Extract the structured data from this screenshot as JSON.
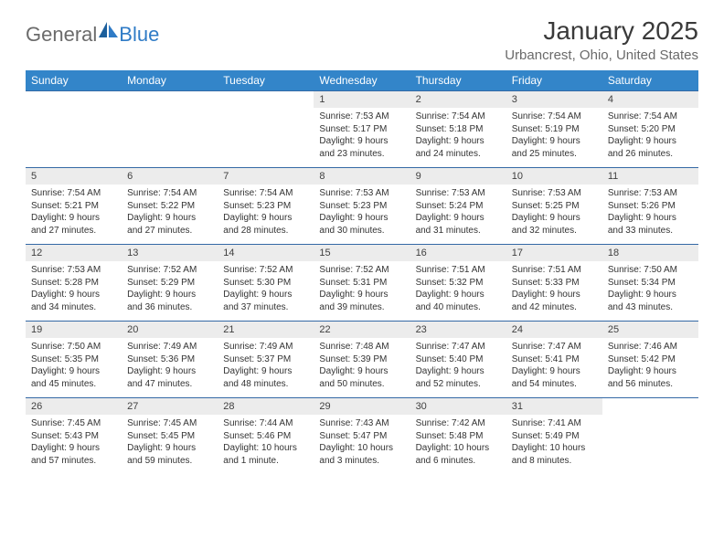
{
  "logo": {
    "general": "General",
    "blue": "Blue"
  },
  "title": "January 2025",
  "location": "Urbancrest, Ohio, United States",
  "colors": {
    "header_bg": "#3385c9",
    "header_text": "#ffffff",
    "daynum_bg": "#ececec",
    "row_border": "#3469a5",
    "text": "#333333",
    "logo_gray": "#6b6b6b",
    "logo_blue": "#2f7bc6"
  },
  "weekdays": [
    "Sunday",
    "Monday",
    "Tuesday",
    "Wednesday",
    "Thursday",
    "Friday",
    "Saturday"
  ],
  "weeks": [
    [
      {
        "day": "",
        "text": ""
      },
      {
        "day": "",
        "text": ""
      },
      {
        "day": "",
        "text": ""
      },
      {
        "day": "1",
        "text": "Sunrise: 7:53 AM\nSunset: 5:17 PM\nDaylight: 9 hours and 23 minutes."
      },
      {
        "day": "2",
        "text": "Sunrise: 7:54 AM\nSunset: 5:18 PM\nDaylight: 9 hours and 24 minutes."
      },
      {
        "day": "3",
        "text": "Sunrise: 7:54 AM\nSunset: 5:19 PM\nDaylight: 9 hours and 25 minutes."
      },
      {
        "day": "4",
        "text": "Sunrise: 7:54 AM\nSunset: 5:20 PM\nDaylight: 9 hours and 26 minutes."
      }
    ],
    [
      {
        "day": "5",
        "text": "Sunrise: 7:54 AM\nSunset: 5:21 PM\nDaylight: 9 hours and 27 minutes."
      },
      {
        "day": "6",
        "text": "Sunrise: 7:54 AM\nSunset: 5:22 PM\nDaylight: 9 hours and 27 minutes."
      },
      {
        "day": "7",
        "text": "Sunrise: 7:54 AM\nSunset: 5:23 PM\nDaylight: 9 hours and 28 minutes."
      },
      {
        "day": "8",
        "text": "Sunrise: 7:53 AM\nSunset: 5:23 PM\nDaylight: 9 hours and 30 minutes."
      },
      {
        "day": "9",
        "text": "Sunrise: 7:53 AM\nSunset: 5:24 PM\nDaylight: 9 hours and 31 minutes."
      },
      {
        "day": "10",
        "text": "Sunrise: 7:53 AM\nSunset: 5:25 PM\nDaylight: 9 hours and 32 minutes."
      },
      {
        "day": "11",
        "text": "Sunrise: 7:53 AM\nSunset: 5:26 PM\nDaylight: 9 hours and 33 minutes."
      }
    ],
    [
      {
        "day": "12",
        "text": "Sunrise: 7:53 AM\nSunset: 5:28 PM\nDaylight: 9 hours and 34 minutes."
      },
      {
        "day": "13",
        "text": "Sunrise: 7:52 AM\nSunset: 5:29 PM\nDaylight: 9 hours and 36 minutes."
      },
      {
        "day": "14",
        "text": "Sunrise: 7:52 AM\nSunset: 5:30 PM\nDaylight: 9 hours and 37 minutes."
      },
      {
        "day": "15",
        "text": "Sunrise: 7:52 AM\nSunset: 5:31 PM\nDaylight: 9 hours and 39 minutes."
      },
      {
        "day": "16",
        "text": "Sunrise: 7:51 AM\nSunset: 5:32 PM\nDaylight: 9 hours and 40 minutes."
      },
      {
        "day": "17",
        "text": "Sunrise: 7:51 AM\nSunset: 5:33 PM\nDaylight: 9 hours and 42 minutes."
      },
      {
        "day": "18",
        "text": "Sunrise: 7:50 AM\nSunset: 5:34 PM\nDaylight: 9 hours and 43 minutes."
      }
    ],
    [
      {
        "day": "19",
        "text": "Sunrise: 7:50 AM\nSunset: 5:35 PM\nDaylight: 9 hours and 45 minutes."
      },
      {
        "day": "20",
        "text": "Sunrise: 7:49 AM\nSunset: 5:36 PM\nDaylight: 9 hours and 47 minutes."
      },
      {
        "day": "21",
        "text": "Sunrise: 7:49 AM\nSunset: 5:37 PM\nDaylight: 9 hours and 48 minutes."
      },
      {
        "day": "22",
        "text": "Sunrise: 7:48 AM\nSunset: 5:39 PM\nDaylight: 9 hours and 50 minutes."
      },
      {
        "day": "23",
        "text": "Sunrise: 7:47 AM\nSunset: 5:40 PM\nDaylight: 9 hours and 52 minutes."
      },
      {
        "day": "24",
        "text": "Sunrise: 7:47 AM\nSunset: 5:41 PM\nDaylight: 9 hours and 54 minutes."
      },
      {
        "day": "25",
        "text": "Sunrise: 7:46 AM\nSunset: 5:42 PM\nDaylight: 9 hours and 56 minutes."
      }
    ],
    [
      {
        "day": "26",
        "text": "Sunrise: 7:45 AM\nSunset: 5:43 PM\nDaylight: 9 hours and 57 minutes."
      },
      {
        "day": "27",
        "text": "Sunrise: 7:45 AM\nSunset: 5:45 PM\nDaylight: 9 hours and 59 minutes."
      },
      {
        "day": "28",
        "text": "Sunrise: 7:44 AM\nSunset: 5:46 PM\nDaylight: 10 hours and 1 minute."
      },
      {
        "day": "29",
        "text": "Sunrise: 7:43 AM\nSunset: 5:47 PM\nDaylight: 10 hours and 3 minutes."
      },
      {
        "day": "30",
        "text": "Sunrise: 7:42 AM\nSunset: 5:48 PM\nDaylight: 10 hours and 6 minutes."
      },
      {
        "day": "31",
        "text": "Sunrise: 7:41 AM\nSunset: 5:49 PM\nDaylight: 10 hours and 8 minutes."
      },
      {
        "day": "",
        "text": ""
      }
    ]
  ]
}
